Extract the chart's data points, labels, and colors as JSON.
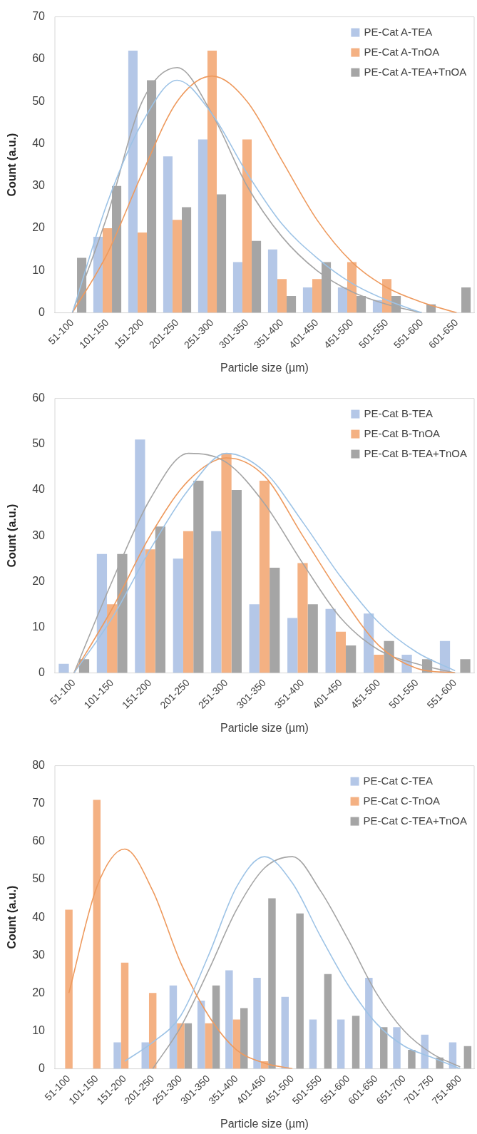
{
  "chart_data": [
    {
      "type": "bar",
      "xlabel": "Particle size (µm)",
      "ylabel": "Count (a.u.)",
      "categories": [
        "51-100",
        "101-150",
        "151-200",
        "201-250",
        "251-300",
        "301-350",
        "351-400",
        "401-450",
        "451-500",
        "501-550",
        "551-600",
        "601-650"
      ],
      "ylim": [
        0,
        70
      ],
      "yticks": [
        0,
        10,
        20,
        30,
        40,
        50,
        60,
        70
      ],
      "legend": "top right",
      "series": [
        {
          "name": "PE-Cat A-TEA",
          "color": "#b4c7e7",
          "values": [
            0,
            18,
            62,
            37,
            41,
            12,
            15,
            6,
            6,
            3,
            0,
            0
          ]
        },
        {
          "name": "PE-Cat A-TnOA",
          "color": "#f4b183",
          "values": [
            0,
            20,
            19,
            22,
            62,
            41,
            8,
            8,
            12,
            8,
            0,
            0
          ]
        },
        {
          "name": "PE-Cat A-TEA+TnOA",
          "color": "#a5a5a5",
          "values": [
            13,
            30,
            55,
            25,
            28,
            17,
            4,
            12,
            4,
            4,
            2,
            6
          ]
        },
        {
          "type": "line",
          "color": "#9dc3e6",
          "values": [
            0,
            26,
            45,
            55,
            47,
            33,
            21,
            13,
            7,
            3,
            0,
            null
          ]
        },
        {
          "type": "line",
          "color": "#ee9a5e",
          "values": [
            0,
            14,
            33,
            50,
            56,
            50,
            36,
            22,
            12,
            6,
            2.5,
            0
          ]
        },
        {
          "type": "line",
          "color": "#a5a5a5",
          "values": [
            0,
            23,
            50,
            58,
            47,
            30,
            18,
            10,
            5,
            2,
            0,
            null
          ]
        }
      ]
    },
    {
      "type": "bar",
      "xlabel": "Particle size (µm)",
      "ylabel": "Count (a.u.)",
      "categories": [
        "51-100",
        "101-150",
        "151-200",
        "201-250",
        "251-300",
        "301-350",
        "351-400",
        "401-450",
        "451-500",
        "501-550",
        "551-600"
      ],
      "ylim": [
        0,
        60
      ],
      "yticks": [
        0,
        10,
        20,
        30,
        40,
        50,
        60
      ],
      "legend": "top right",
      "series": [
        {
          "name": "PE-Cat B-TEA",
          "color": "#b4c7e7",
          "values": [
            2,
            26,
            51,
            25,
            31,
            15,
            12,
            14,
            13,
            4,
            7
          ]
        },
        {
          "name": "PE-Cat B-TnOA",
          "color": "#f4b183",
          "values": [
            0,
            15,
            27,
            31,
            48,
            42,
            24,
            9,
            4,
            0,
            0
          ]
        },
        {
          "name": "PE-Cat B-TEA+TnOA",
          "color": "#a5a5a5",
          "values": [
            3,
            26,
            32,
            42,
            40,
            23,
            15,
            6,
            7,
            3,
            3
          ]
        },
        {
          "type": "line",
          "color": "#9dc3e6",
          "values": [
            0,
            12,
            27,
            40,
            48,
            44,
            33,
            21,
            11,
            4.5,
            0.5
          ]
        },
        {
          "type": "line",
          "color": "#ee9a5e",
          "values": [
            0,
            14,
            30,
            42,
            47,
            43,
            30,
            17,
            6,
            1,
            0
          ]
        },
        {
          "type": "line",
          "color": "#a5a5a5",
          "values": [
            0,
            20,
            38,
            48,
            46,
            37,
            24,
            12,
            5,
            2,
            0
          ]
        }
      ]
    },
    {
      "type": "bar",
      "xlabel": "Particle size (µm)",
      "ylabel": "Count (a.u.)",
      "categories": [
        "51-100",
        "101-150",
        "151-200",
        "201-250",
        "251-300",
        "301-350",
        "351-400",
        "401-450",
        "451-500",
        "501-550",
        "551-600",
        "601-650",
        "651-700",
        "701-750",
        "751-800"
      ],
      "ylim": [
        0,
        80
      ],
      "yticks": [
        0,
        10,
        20,
        30,
        40,
        50,
        60,
        70,
        80
      ],
      "legend": "top right",
      "series": [
        {
          "name": "PE-Cat C-TEA",
          "color": "#b4c7e7",
          "values": [
            0,
            0,
            7,
            7,
            22,
            18,
            26,
            24,
            19,
            13,
            13,
            24,
            11,
            9,
            7
          ]
        },
        {
          "name": "PE-Cat C-TnOA",
          "color": "#f4b183",
          "values": [
            42,
            71,
            28,
            20,
            12,
            12,
            13,
            2,
            0,
            0,
            0,
            0,
            0,
            0,
            0
          ]
        },
        {
          "name": "PE-Cat C-TEA+TnOA",
          "color": "#a5a5a5",
          "values": [
            0,
            0,
            0,
            0,
            12,
            22,
            16,
            45,
            41,
            25,
            14,
            11,
            5,
            3,
            6
          ]
        },
        {
          "type": "line",
          "color": "#9dc3e6",
          "values": [
            null,
            null,
            2,
            7,
            14,
            30,
            48,
            56,
            49,
            35,
            22,
            12,
            6,
            3,
            0
          ]
        },
        {
          "type": "line",
          "color": "#ee9a5e",
          "values": [
            20,
            48,
            58,
            47,
            28,
            14,
            5,
            1.5,
            0,
            null,
            null,
            null,
            null,
            null,
            null
          ]
        },
        {
          "type": "line",
          "color": "#a5a5a5",
          "values": [
            null,
            null,
            null,
            0,
            11,
            26,
            42,
            53,
            56,
            47,
            34,
            20,
            10,
            4,
            0.5
          ]
        }
      ]
    }
  ]
}
